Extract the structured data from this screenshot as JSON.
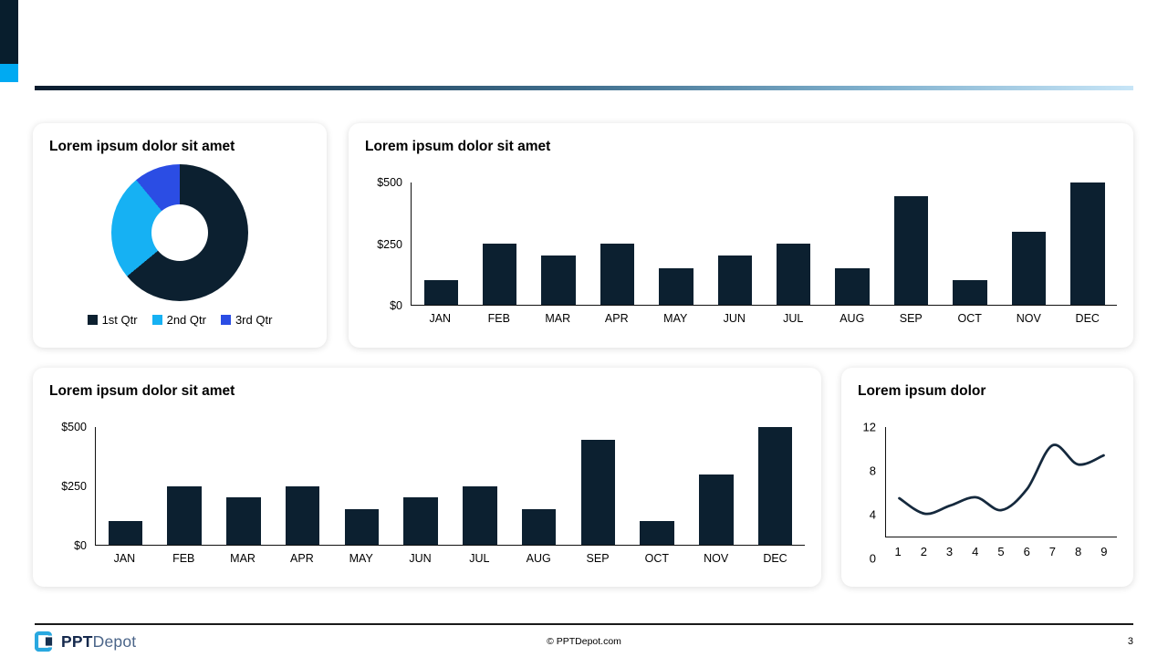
{
  "decor": {
    "corner_dark_color": "#081e2d",
    "corner_cyan_color": "#00aaf2",
    "gradient_left": "#0a1c2e",
    "gradient_right": "#c7e5f7"
  },
  "cards": {
    "donut": {
      "title": "Lorem ipsum dolor sit amet"
    },
    "bar_top": {
      "title": "Lorem ipsum dolor sit amet"
    },
    "bar_bottom": {
      "title": "Lorem ipsum dolor sit amet"
    },
    "line": {
      "title": "Lorem ipsum dolor"
    }
  },
  "footer": {
    "brand_bold": "PPT",
    "brand_light": "Depot",
    "center": "© PPTDepot.com",
    "page_number": "3"
  },
  "chart_data": [
    {
      "id": "donut",
      "type": "pie",
      "subtype": "donut",
      "title": "Lorem ipsum dolor sit amet",
      "labels": [
        "1st Qtr",
        "2nd Qtr",
        "3rd Qtr"
      ],
      "values": [
        64,
        25,
        11
      ],
      "colors": [
        "#0c2030",
        "#16b1f3",
        "#2b4de4"
      ],
      "donut_hole_ratio": 0.41,
      "legend_position": "bottom"
    },
    {
      "id": "bar-top",
      "type": "bar",
      "title": "Lorem ipsum dolor sit amet",
      "categories": [
        "JAN",
        "FEB",
        "MAR",
        "APR",
        "MAY",
        "JUN",
        "JUL",
        "AUG",
        "SEP",
        "OCT",
        "NOV",
        "DEC"
      ],
      "values": [
        100,
        250,
        200,
        250,
        150,
        200,
        250,
        150,
        445,
        100,
        300,
        500
      ],
      "bar_color": "#0c2030",
      "ytick_labels": [
        "$0",
        "$250",
        "$500"
      ],
      "ylim": [
        0,
        500
      ],
      "grid": false
    },
    {
      "id": "bar-bottom",
      "type": "bar",
      "title": "Lorem ipsum dolor sit amet",
      "categories": [
        "JAN",
        "FEB",
        "MAR",
        "APR",
        "MAY",
        "JUN",
        "JUL",
        "AUG",
        "SEP",
        "OCT",
        "NOV",
        "DEC"
      ],
      "values": [
        100,
        250,
        200,
        250,
        150,
        200,
        250,
        150,
        445,
        100,
        300,
        500
      ],
      "bar_color": "#0c2030",
      "ytick_labels": [
        "$0",
        "$250",
        "$500"
      ],
      "ylim": [
        0,
        500
      ],
      "grid": false
    },
    {
      "id": "line",
      "type": "line",
      "title": "Lorem ipsum dolor",
      "x": [
        1,
        2,
        3,
        4,
        5,
        6,
        7,
        8,
        9
      ],
      "y": [
        4.2,
        2.5,
        3.4,
        4.3,
        2.9,
        5.2,
        10,
        7.9,
        8.9
      ],
      "line_color": "#15293d",
      "smooth": true,
      "ytick_labels": [
        "0",
        "4",
        "8",
        "12"
      ],
      "ylim": [
        0,
        12
      ],
      "grid": false
    }
  ]
}
